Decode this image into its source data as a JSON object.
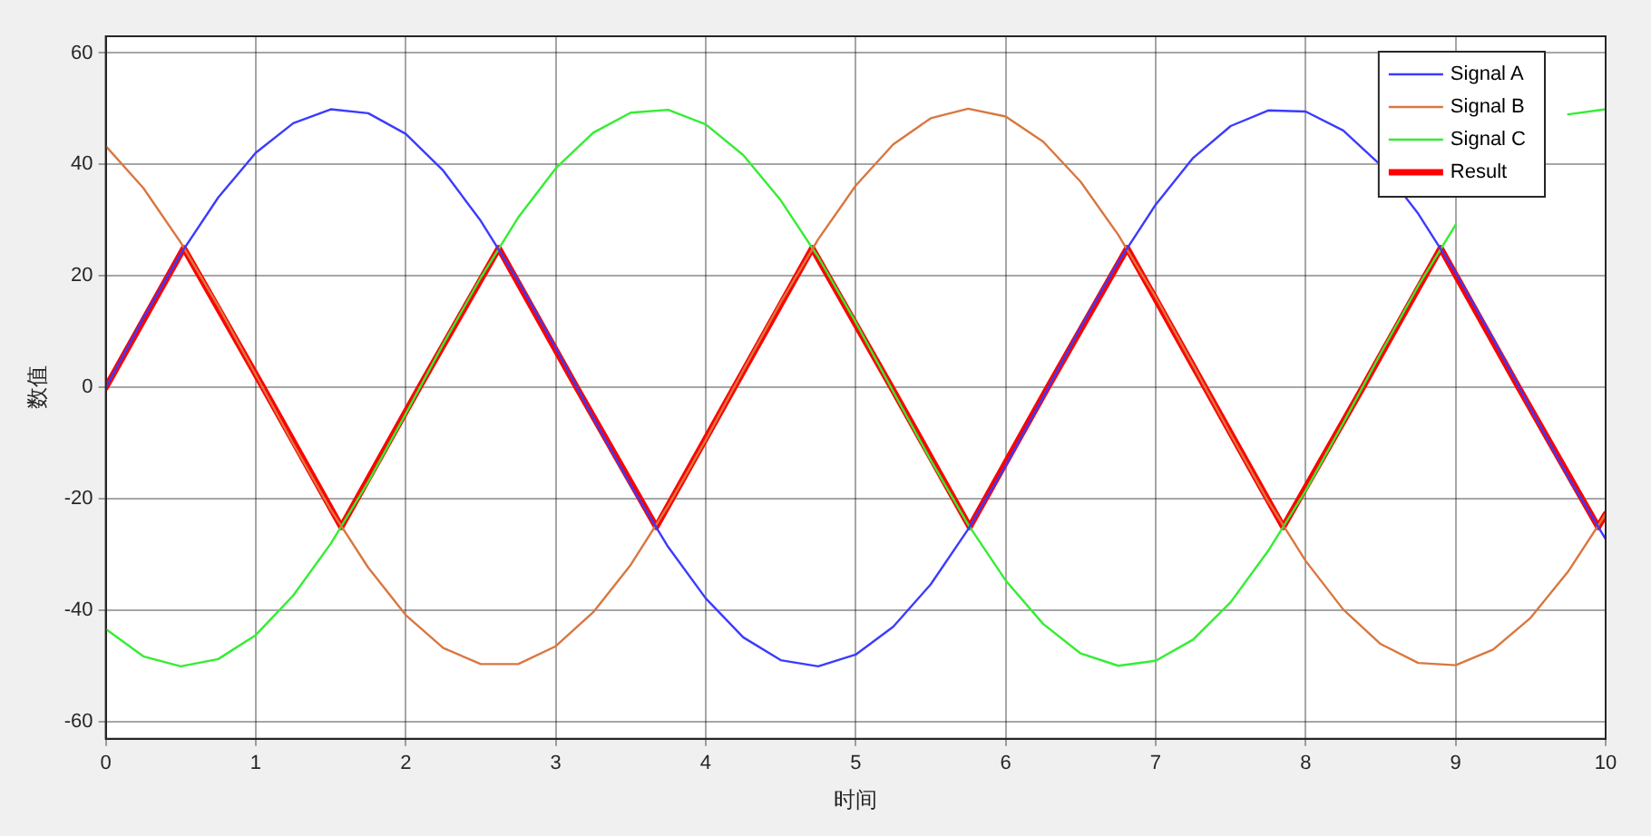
{
  "chart_data": {
    "type": "line",
    "xlabel": "时间",
    "ylabel": "数值",
    "x": [
      0,
      0.25,
      0.5,
      0.75,
      1,
      1.25,
      1.5,
      1.75,
      2,
      2.25,
      2.5,
      2.75,
      3,
      3.25,
      3.5,
      3.75,
      4,
      4.25,
      4.5,
      4.75,
      5,
      5.25,
      5.5,
      5.75,
      6,
      6.25,
      6.5,
      6.75,
      7,
      7.25,
      7.5,
      7.75,
      8,
      8.25,
      8.5,
      8.75,
      9,
      9.25,
      9.5,
      9.75,
      10
    ],
    "series": [
      {
        "name": "Signal A",
        "color": "#3b3bff",
        "values": [
          0,
          12.4,
          24.0,
          34.1,
          42.1,
          47.4,
          49.9,
          49.2,
          45.5,
          38.9,
          29.9,
          19.1,
          7.1,
          -5.4,
          -17.5,
          -28.6,
          -37.8,
          -44.8,
          -48.9,
          -50.0,
          -47.9,
          -42.9,
          -35.3,
          -25.4,
          -14.0,
          -1.7,
          10.8,
          22.5,
          32.8,
          41.2,
          46.9,
          49.7,
          49.5,
          46.1,
          39.9,
          31.2,
          20.6,
          8.7,
          -3.8,
          -16.0,
          -27.2
        ]
      },
      {
        "name": "Signal B",
        "color": "#d9773f",
        "values": [
          43.3,
          35.8,
          26.0,
          14.6,
          2.3,
          -10.1,
          -21.9,
          -32.3,
          -40.8,
          -46.7,
          -49.6,
          -49.6,
          -46.4,
          -40.3,
          -31.8,
          -21.2,
          -9.4,
          3.1,
          15.3,
          26.6,
          36.2,
          43.6,
          48.3,
          50.0,
          48.6,
          44.1,
          36.9,
          27.4,
          16.2,
          4.0,
          -8.4,
          -20.4,
          -31.1,
          -39.8,
          -46.0,
          -49.4,
          -49.8,
          -47.0,
          -41.3,
          -33.0,
          -22.7
        ]
      },
      {
        "name": "Signal C",
        "color": "#33ee33",
        "values": [
          -43.3,
          -48.2,
          -50.0,
          -48.7,
          -44.4,
          -37.3,
          -28.0,
          -16.9,
          -4.7,
          7.8,
          19.7,
          30.5,
          39.3,
          45.7,
          49.3,
          49.8,
          47.2,
          41.7,
          33.6,
          23.4,
          11.7,
          -0.7,
          -13.0,
          -24.6,
          -34.6,
          -42.4,
          -47.7,
          -49.9,
          -49.0,
          -45.2,
          -38.5,
          -29.3,
          -18.5,
          -6.4,
          6.1,
          18.2,
          29.2,
          null,
          null,
          49.0,
          49.9
        ]
      },
      {
        "name": "Result",
        "color": "#ff0000",
        "x": [
          0,
          0.52,
          1.05,
          1.57,
          2.09,
          2.62,
          3.14,
          3.67,
          4.19,
          4.71,
          5.24,
          5.76,
          6.28,
          6.81,
          7.33,
          7.85,
          8.38,
          8.9,
          9.42,
          9.95,
          10
        ],
        "values": [
          0,
          25,
          0,
          -25,
          0,
          25,
          0,
          -25,
          0,
          25,
          0,
          -25,
          0,
          25,
          0,
          -25,
          0,
          25,
          0,
          -25,
          -22.7
        ]
      }
    ],
    "xlim": [
      0,
      10
    ],
    "xticks": [
      0,
      1,
      2,
      3,
      4,
      5,
      6,
      7,
      8,
      9,
      10
    ],
    "ylim": [
      -63,
      63
    ],
    "yticks": [
      -60,
      -40,
      -20,
      0,
      20,
      40,
      60
    ],
    "grid": true,
    "legend": "top right",
    "marker": "none",
    "line_style": "solid"
  }
}
